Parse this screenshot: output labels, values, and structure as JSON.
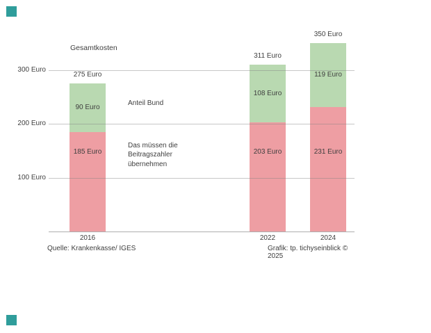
{
  "page": {
    "background": "#ffffff"
  },
  "decorations": {
    "corner_square_color": "#2f9d9b"
  },
  "chart_data": {
    "type": "bar",
    "stacked": true,
    "title": "Gesamtkosten",
    "unit": "Euro",
    "categories": [
      "2016",
      "2022",
      "2024"
    ],
    "series": [
      {
        "name": "Das müssen die Beitragszahler übernehmen",
        "color": "#ee9ea3",
        "values": [
          185,
          203,
          231
        ]
      },
      {
        "name": "Anteil Bund",
        "color": "#b9d9b1",
        "values": [
          90,
          108,
          119
        ]
      }
    ],
    "totals": [
      275,
      311,
      350
    ],
    "y_axis": {
      "ticks": [
        {
          "value": 300,
          "label": "300 Euro"
        },
        {
          "value": 200,
          "label": "200 Euro"
        },
        {
          "value": 100,
          "label": "100 Euro"
        }
      ],
      "min": 0,
      "max": 360
    },
    "grid": true,
    "legend": "none",
    "annotations": {
      "green": "Anteil Bund",
      "red_lines": [
        "Das müssen die",
        "Beitragszahler",
        "übernehmen"
      ]
    },
    "footer": {
      "source": "Quelle: Krankenkasse/ IGES",
      "credit": "Grafik: tp. tichyseinblick © 2025"
    }
  }
}
